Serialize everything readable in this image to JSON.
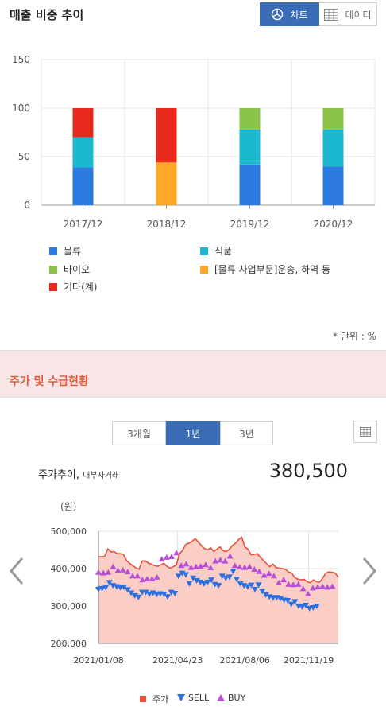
{
  "section1": {
    "title": "매출 비중 추이",
    "chart_btn": "차트",
    "data_btn": "데이터",
    "unit": "* 단위 : %"
  },
  "colors": {
    "logistics": "#2b7be0",
    "food": "#1cb8d0",
    "bio": "#8bc34a",
    "other_logistics": "#ffa726",
    "etc": "#e8291c",
    "price_line": "#e8503a",
    "price_fill": "#f9c6bd",
    "sell": "#2b6fe0",
    "buy": "#b64fd6"
  },
  "section2": {
    "title": "주가 및 수급현황",
    "periods": [
      "3개월",
      "1년",
      "3년"
    ],
    "active_period": "1년",
    "price_title": "주가추이,",
    "price_subtitle": "내부자거래",
    "price": "380,500",
    "y_unit": "(원)"
  },
  "chart_data": [
    {
      "type": "bar",
      "stacked": true,
      "categories": [
        "2017/12",
        "2018/12",
        "2019/12",
        "2020/12"
      ],
      "series": [
        {
          "name": "물류",
          "values": [
            39,
            0,
            42,
            40
          ]
        },
        {
          "name": "식품",
          "values": [
            31,
            0,
            36,
            38
          ]
        },
        {
          "name": "바이오",
          "values": [
            0,
            0,
            22,
            22
          ]
        },
        {
          "name": "[물류 사업부문]운송, 하역 등",
          "values": [
            0,
            44,
            0,
            0
          ]
        },
        {
          "name": "기타(계)",
          "values": [
            30,
            56,
            0,
            0
          ]
        }
      ],
      "ylim": [
        0,
        150
      ],
      "yticks": [
        "0",
        "50",
        "100",
        "150"
      ],
      "grid": true,
      "legend_position": "bottom"
    },
    {
      "type": "line",
      "x_start": "2021/01/01",
      "xticks": [
        "2021/01/08",
        "2021/04/23",
        "2021/08/06",
        "2021/11/19"
      ],
      "yticks": [
        "200,000",
        "300,000",
        "400,000",
        "500,000"
      ],
      "ylim": [
        200000,
        500000
      ],
      "series": [
        {
          "name": "주가",
          "values": [
            432000,
            432000,
            433000,
            453000,
            445000,
            446000,
            440000,
            440000,
            438000,
            422000,
            414000,
            408000,
            402000,
            398000,
            420000,
            421000,
            415000,
            412000,
            408000,
            406000,
            410000,
            414000,
            406000,
            401000,
            405000,
            410000,
            440000,
            449000,
            465000,
            468000,
            473000,
            480000,
            472000,
            462000,
            454000,
            450000,
            456000,
            446000,
            452000,
            458000,
            448000,
            446000,
            452000,
            462000,
            468000,
            478000,
            484000,
            458000,
            452000,
            437000,
            438000,
            440000,
            430000,
            421000,
            413000,
            405000,
            412000,
            403000,
            401000,
            400000,
            398000,
            391000,
            388000,
            376000,
            372000,
            370000,
            371000,
            365000,
            362000,
            370000,
            365000,
            364000,
            375000,
            388000,
            391000,
            390000,
            388000,
            377000
          ]
        },
        {
          "name": "SELL",
          "values": [
            345000,
            347000,
            350000,
            363000,
            355000,
            352000,
            350000,
            351000,
            344000,
            335000,
            328000,
            324000,
            337000,
            337000,
            332000,
            335000,
            331000,
            333000,
            332000,
            325000,
            337000,
            334000,
            380000,
            388000,
            384000,
            360000,
            375000,
            368000,
            364000,
            360000,
            364000,
            370000,
            358000,
            355000,
            380000,
            375000,
            378000,
            393000,
            372000,
            360000,
            355000,
            352000,
            356000,
            345000,
            357000,
            340000,
            330000,
            325000,
            322000,
            323000,
            320000,
            316000,
            315000,
            305000,
            312000,
            300000,
            298000,
            302000,
            294000,
            296000,
            300000
          ]
        },
        {
          "name": "BUY",
          "values": [
            390000,
            388000,
            390000,
            405000,
            395000,
            396000,
            391000,
            380000,
            380000,
            370000,
            372000,
            372000,
            377000,
            425000,
            430000,
            432000,
            442000,
            408000,
            412000,
            403000,
            405000,
            406000,
            410000,
            402000,
            420000,
            423000,
            420000,
            433000,
            408000,
            404000,
            403000,
            405000,
            398000,
            392000,
            382000,
            387000,
            380000,
            362000,
            370000,
            358000,
            357000,
            358000,
            346000,
            332000,
            348000,
            351000,
            352000,
            350000,
            352000
          ]
        }
      ],
      "legend_position": "bottom"
    }
  ]
}
